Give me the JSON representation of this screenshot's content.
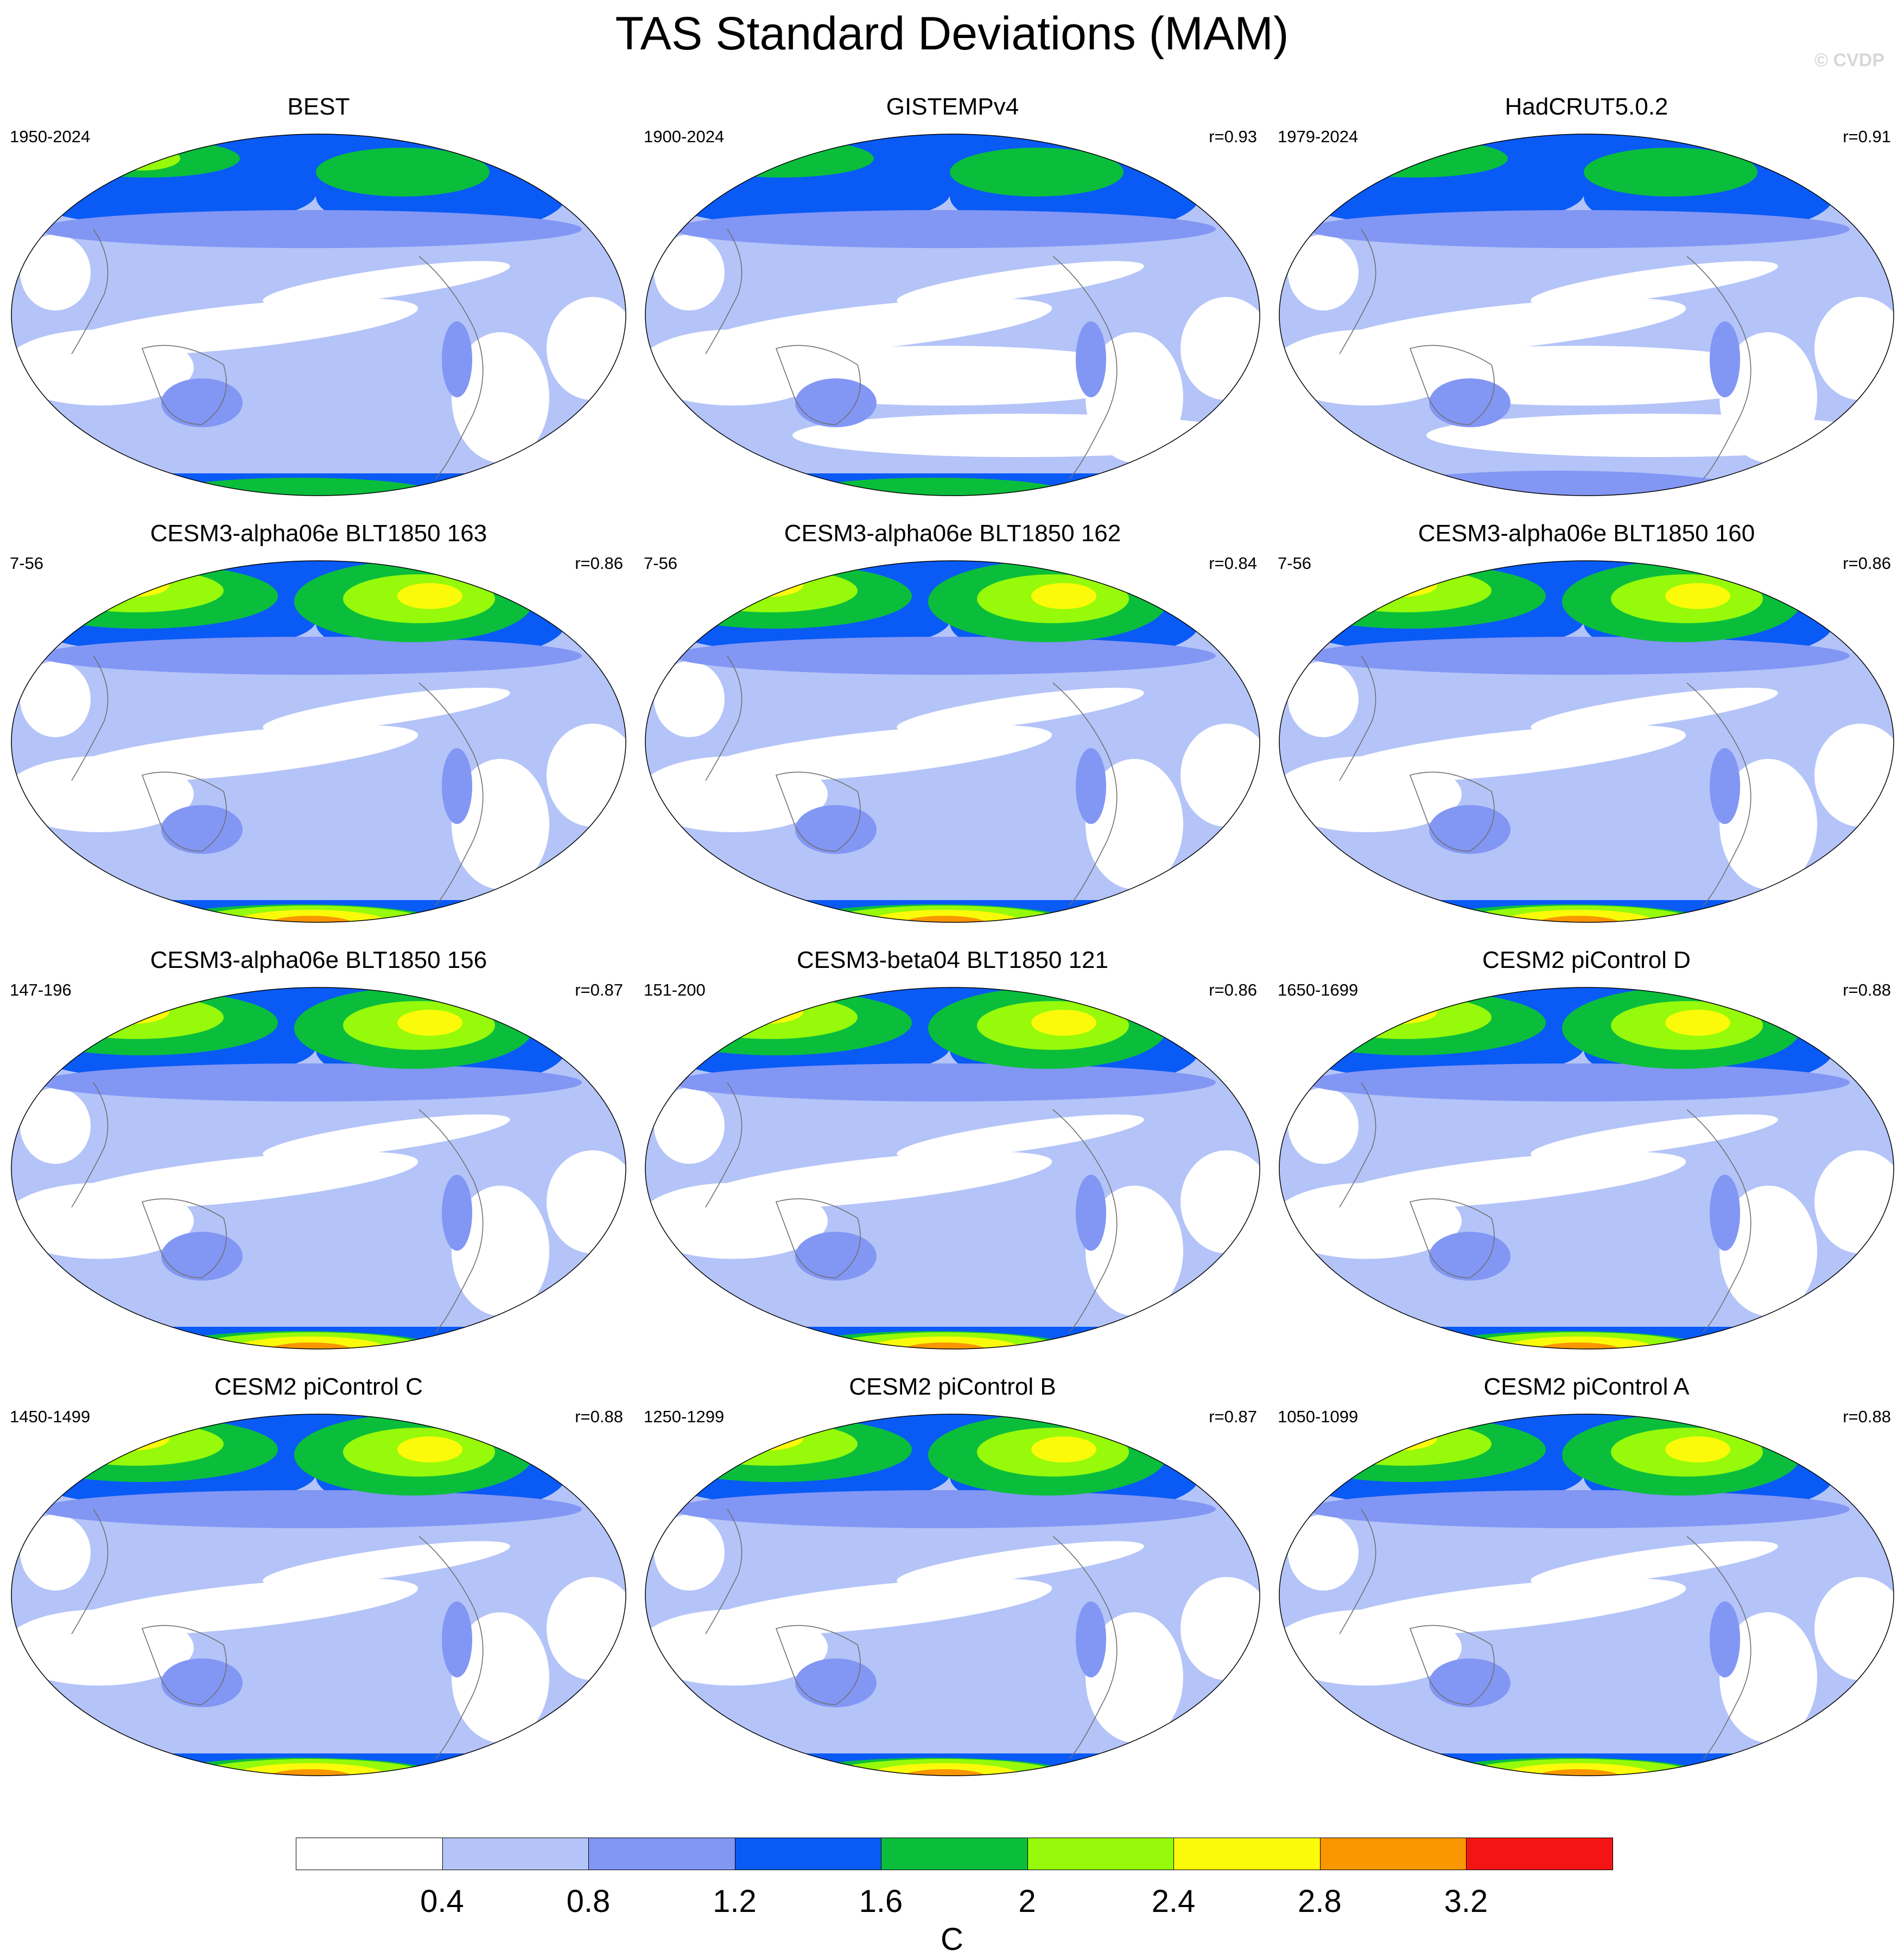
{
  "figure": {
    "title": "TAS Standard Deviations (MAM)",
    "credit": "© CVDP"
  },
  "panels": [
    {
      "title": "BEST",
      "period": "1950-2024",
      "corr": "",
      "style": "obs_best"
    },
    {
      "title": "GISTEMPv4",
      "period": "1900-2024",
      "corr": "r=0.93",
      "style": "obs_gistemp"
    },
    {
      "title": "HadCRUT5.0.2",
      "period": "1979-2024",
      "corr": "r=0.91",
      "style": "obs_hadcrut"
    },
    {
      "title": "CESM3-alpha06e BLT1850 163",
      "period": "7-56",
      "corr": "r=0.86",
      "style": "model_hot"
    },
    {
      "title": "CESM3-alpha06e BLT1850 162",
      "period": "7-56",
      "corr": "r=0.84",
      "style": "model_hot"
    },
    {
      "title": "CESM3-alpha06e BLT1850 160",
      "period": "7-56",
      "corr": "r=0.86",
      "style": "model_hot"
    },
    {
      "title": "CESM3-alpha06e BLT1850 156",
      "period": "147-196",
      "corr": "r=0.87",
      "style": "model_hot"
    },
    {
      "title": "CESM3-beta04 BLT1850 121",
      "period": "151-200",
      "corr": "r=0.86",
      "style": "model_hot"
    },
    {
      "title": "CESM2 piControl D",
      "period": "1650-1699",
      "corr": "r=0.88",
      "style": "model_warm"
    },
    {
      "title": "CESM2 piControl C",
      "period": "1450-1499",
      "corr": "r=0.88",
      "style": "model_warm"
    },
    {
      "title": "CESM2 piControl B",
      "period": "1250-1299",
      "corr": "r=0.87",
      "style": "model_warm"
    },
    {
      "title": "CESM2 piControl A",
      "period": "1050-1099",
      "corr": "r=0.88",
      "style": "model_warm"
    }
  ],
  "colorbar": {
    "unit": "C",
    "tick_labels": [
      "0.4",
      "0.8",
      "1.2",
      "1.6",
      "2",
      "2.4",
      "2.8",
      "3.2"
    ],
    "colors": [
      "#ffffff",
      "#b4c4f8",
      "#8296f4",
      "#0a5af5",
      "#0abe3c",
      "#96fa0a",
      "#fafa0a",
      "#fa9600",
      "#f51414"
    ]
  }
}
